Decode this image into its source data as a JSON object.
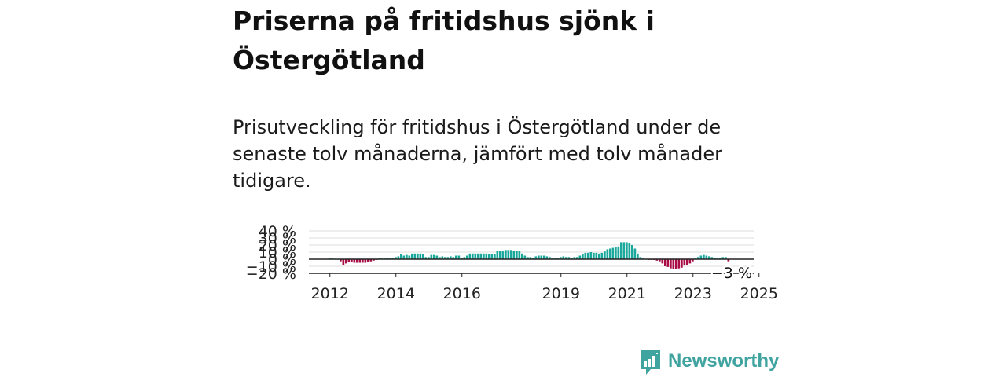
{
  "page": {
    "title": "Priserna på fritidshus sjönk i Östergötland",
    "subtitle": "Prisutveckling för fritidshus i Östergötland under de senaste tolv månaderna, jämfört med tolv månader tidigare."
  },
  "brand": {
    "name": "Newsworthy",
    "color": "#3fa3a0"
  },
  "colors": {
    "positive": "#1aa79c",
    "negative": "#a80e45",
    "grid": "#dddddd",
    "axis": "#222222"
  },
  "chart_data": {
    "type": "bar",
    "yticks": [
      "40 %",
      "30 %",
      "20 %",
      "10 %",
      "0 %",
      "−10 %",
      "−20 %"
    ],
    "ytick_values": [
      40,
      30,
      20,
      10,
      0,
      -10,
      -20
    ],
    "ylim": [
      -20,
      40
    ],
    "xticks": [
      "2012",
      "2014",
      "2016",
      "2019",
      "2021",
      "2023",
      "2025"
    ],
    "last_label": "−3 %",
    "series": [
      {
        "start": "2012-01",
        "values": [
          2,
          1,
          0,
          0,
          -3,
          -8,
          -6,
          -4,
          -4,
          -5,
          -5,
          -5,
          -5,
          -5,
          -4,
          -3,
          -2,
          -1,
          1,
          1,
          1,
          2,
          2,
          2,
          3,
          4,
          7,
          5,
          6,
          5,
          8,
          8,
          8,
          8,
          7,
          3,
          3,
          6,
          6,
          5,
          3,
          4,
          3,
          3,
          4,
          3,
          5,
          5,
          2,
          3,
          5,
          8,
          8,
          8,
          8,
          8,
          8,
          8,
          7,
          7,
          7,
          12,
          12,
          11,
          13,
          13,
          13,
          12,
          12,
          12,
          8,
          5,
          3,
          3,
          2,
          4,
          5,
          5,
          5,
          4,
          3,
          2,
          2,
          2,
          3,
          4,
          3,
          3,
          2,
          3,
          3,
          5,
          7,
          9,
          9,
          10,
          9,
          9,
          8,
          9,
          11,
          14,
          15,
          16,
          17,
          18,
          24,
          24,
          24,
          23,
          20,
          15,
          8,
          3,
          1,
          0,
          -1,
          -1,
          -1,
          -2,
          -3,
          -6,
          -10,
          -11,
          -13,
          -14,
          -14,
          -13,
          -12,
          -9,
          -8,
          -6,
          -3,
          1,
          3,
          5,
          6,
          5,
          4,
          3,
          2,
          2,
          2,
          3,
          3,
          -3
        ]
      }
    ]
  }
}
